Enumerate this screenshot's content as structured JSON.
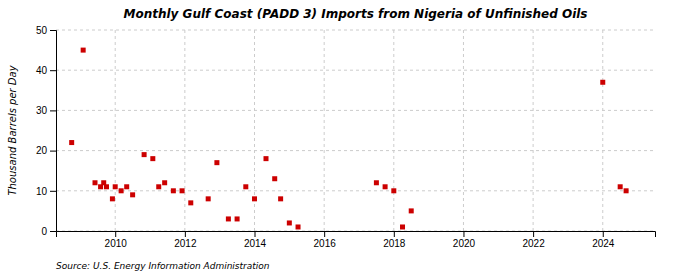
{
  "chart_data": {
    "type": "scatter",
    "title": "Monthly Gulf Coast (PADD 3) Imports from Nigeria of Unfinished Oils",
    "y_label": "Thousand Barrels per Day",
    "source": "Source: U.S. Energy Information Administration",
    "color": "#cc0000",
    "marker": "square",
    "grid": true,
    "xlim": [
      2008.3,
      2025.5
    ],
    "xticks": [
      2010,
      2012,
      2014,
      2016,
      2018,
      2020,
      2022,
      2024
    ],
    "ylim": [
      0,
      50
    ],
    "yticks": [
      0,
      10,
      20,
      30,
      40,
      50
    ],
    "x": [
      2008.75,
      2009.08,
      2009.42,
      2009.58,
      2009.67,
      2009.75,
      2009.92,
      2010.0,
      2010.17,
      2010.33,
      2010.5,
      2010.83,
      2011.08,
      2011.25,
      2011.42,
      2011.67,
      2011.92,
      2012.17,
      2012.67,
      2012.92,
      2013.25,
      2013.5,
      2013.75,
      2014.0,
      2014.33,
      2014.58,
      2014.75,
      2015.0,
      2015.25,
      2017.5,
      2017.75,
      2018.0,
      2018.25,
      2018.5,
      2024.0,
      2024.5,
      2024.67
    ],
    "values": [
      22,
      45,
      12,
      11,
      12,
      11,
      8,
      11,
      10,
      11,
      9,
      19,
      18,
      11,
      12,
      10,
      10,
      7,
      8,
      17,
      3,
      3,
      11,
      8,
      18,
      13,
      8,
      2,
      1,
      12,
      11,
      10,
      1,
      5,
      37,
      11,
      10
    ]
  }
}
